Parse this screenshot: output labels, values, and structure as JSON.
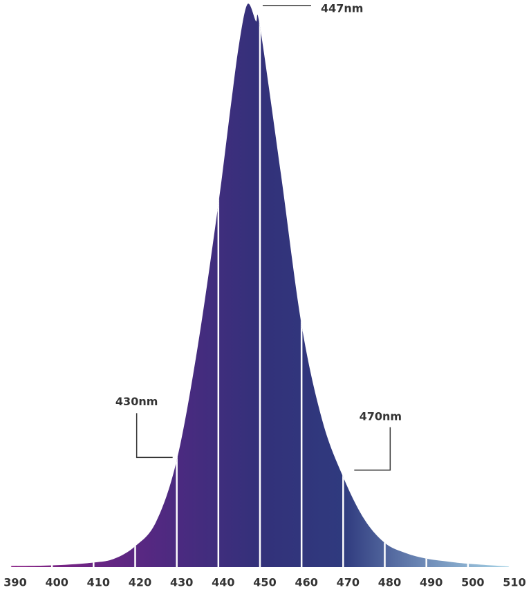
{
  "chart_data": {
    "type": "area",
    "x": [
      390,
      400,
      410,
      415,
      420,
      425,
      430,
      435,
      440,
      443,
      445,
      447,
      449,
      450,
      455,
      460,
      465,
      470,
      475,
      480,
      485,
      490,
      495,
      500,
      510
    ],
    "values": [
      0.2,
      0.3,
      0.8,
      1.5,
      3.7,
      8,
      19,
      39,
      64.5,
      82,
      93,
      100,
      97,
      96,
      70,
      43,
      26,
      16,
      8.6,
      4.3,
      2.5,
      1.5,
      1,
      0.6,
      0.1
    ],
    "gradient_colors": [
      "#8a2385",
      "#6a2584",
      "#4b2a80",
      "#33317a",
      "#2f3a7e",
      "#6f8cb8",
      "#a6d3e6"
    ],
    "xlim": [
      390,
      510
    ],
    "xticks": [
      390,
      400,
      410,
      420,
      430,
      440,
      450,
      460,
      470,
      480,
      490,
      500,
      510
    ],
    "ylim": [
      0,
      100
    ],
    "grid": true,
    "annotations": [
      {
        "text": "430nm",
        "x": 430
      },
      {
        "text": "447nm",
        "x": 447
      },
      {
        "text": "470nm",
        "x": 470
      }
    ]
  }
}
